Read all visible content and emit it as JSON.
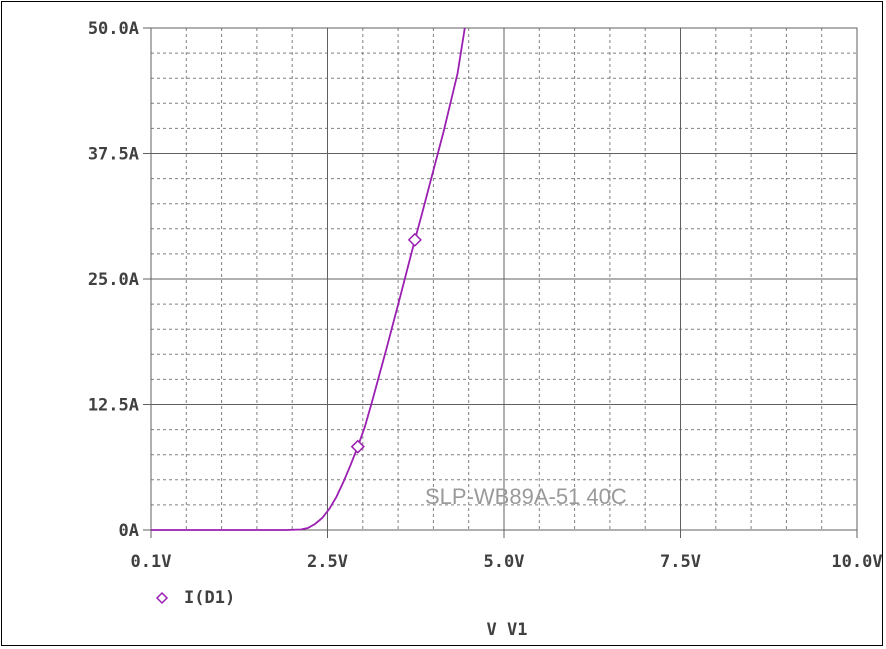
{
  "chart_data": {
    "type": "line",
    "title": "",
    "xlabel": "V V1",
    "ylabel": "",
    "x_ticks": [
      "0.1V",
      "2.5V",
      "5.0V",
      "7.5V",
      "10.0V"
    ],
    "x_tick_values": [
      0.1,
      2.5,
      5.0,
      7.5,
      10.0
    ],
    "y_ticks": [
      "0A",
      "12.5A",
      "25.0A",
      "37.5A",
      "50.0A"
    ],
    "y_tick_values": [
      0,
      12.5,
      25.0,
      37.5,
      50.0
    ],
    "xlim": [
      0.1,
      10.0
    ],
    "ylim": [
      0,
      50.0
    ],
    "grid": true,
    "legend_position": "bottom-left",
    "annotation": "SLP-WB89A-51 40C",
    "series": [
      {
        "name": "I(D1)",
        "color": "#9b1fb2",
        "marker": "diamond",
        "x": [
          0.1,
          1.0,
          2.0,
          2.2,
          2.3,
          2.4,
          2.5,
          2.6,
          2.7,
          2.8,
          2.9,
          3.0,
          3.1,
          3.2,
          3.4,
          3.6,
          3.8,
          3.9,
          4.0,
          4.2,
          4.4,
          4.5
        ],
        "y": [
          0,
          0,
          0,
          0.05,
          0.2,
          0.6,
          1.2,
          2.1,
          3.3,
          4.8,
          6.5,
          8.3,
          10.3,
          12.8,
          18.0,
          23.4,
          28.9,
          31.5,
          34.2,
          39.6,
          45.5,
          50.0
        ],
        "marker_points": [
          [
            3.0,
            8.3
          ],
          [
            3.8,
            28.9
          ]
        ]
      }
    ]
  }
}
